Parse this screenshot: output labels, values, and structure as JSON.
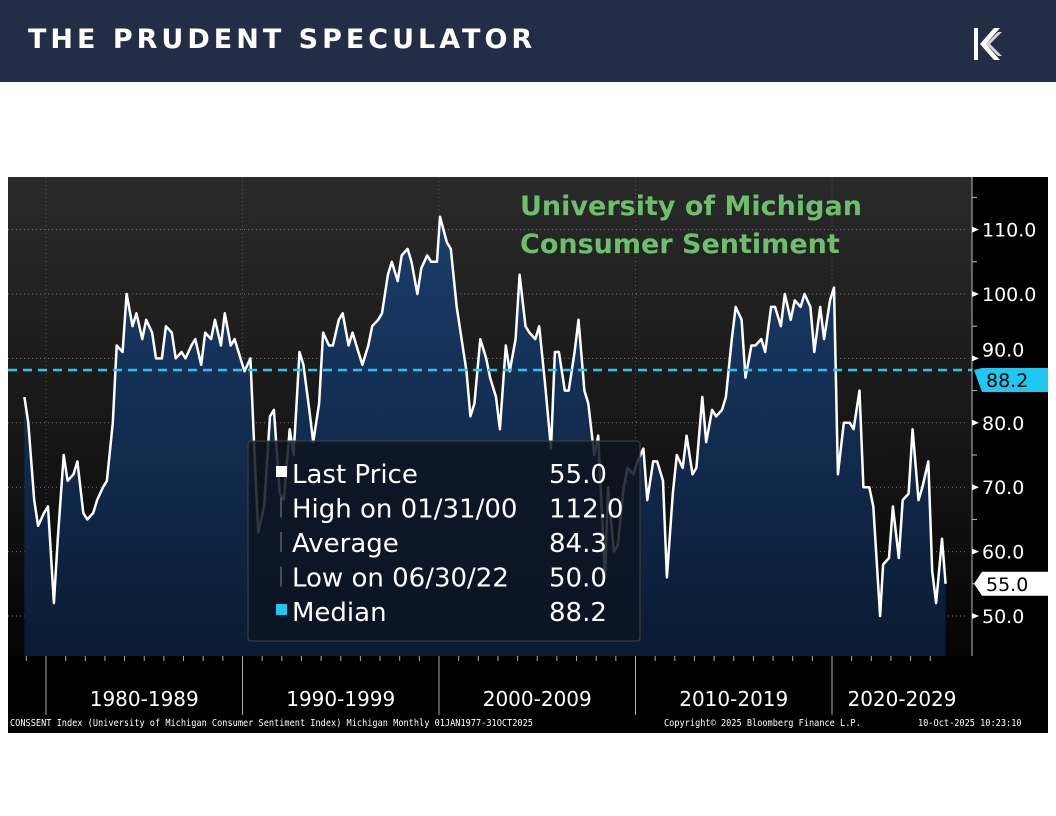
{
  "header": {
    "brand": "THE PRUDENT SPECULATOR",
    "logo_icon": "k-arrow-logo"
  },
  "chart_data": {
    "type": "area",
    "title": "University of Michigan Consumer Sentiment",
    "title_lines": [
      "University of Michigan",
      "Consumer Sentiment"
    ],
    "xlabel": "",
    "ylabel": "",
    "ylim": [
      44,
      118
    ],
    "xlim": [
      1978.9,
      2026.4
    ],
    "yticks": [
      "50.0",
      "60.0",
      "70.0",
      "80.0",
      "90.0",
      "100.0",
      "110.0"
    ],
    "ytick_values": [
      50,
      60,
      70,
      80,
      90,
      100,
      110
    ],
    "xtick_labels": [
      "1980-1989",
      "1990-1999",
      "2000-2009",
      "2010-2019",
      "2020-2029"
    ],
    "decade_starts": [
      1980,
      1990,
      2000,
      2010,
      2020,
      2030
    ],
    "grid": true,
    "median": 88.2,
    "median_label": "88.2",
    "last_label": "55.0",
    "colors": {
      "line": "#ffffff",
      "median": "#1ec8f0",
      "title": "#6dbf6d",
      "fill_top": "#1b3d6b",
      "fill_bottom": "#0a1a33"
    },
    "series": [
      {
        "name": "CONSSENT Index",
        "x": [
          1978.9,
          1979.1,
          1979.4,
          1979.6,
          1979.9,
          1980.1,
          1980.4,
          1980.6,
          1980.9,
          1981.1,
          1981.4,
          1981.6,
          1981.9,
          1982.1,
          1982.4,
          1982.6,
          1982.9,
          1983.1,
          1983.4,
          1983.6,
          1983.9,
          1984.1,
          1984.4,
          1984.6,
          1984.9,
          1985.1,
          1985.4,
          1985.6,
          1985.9,
          1986.1,
          1986.4,
          1986.6,
          1986.9,
          1987.1,
          1987.4,
          1987.6,
          1987.9,
          1988.1,
          1988.4,
          1988.6,
          1988.9,
          1989.1,
          1989.4,
          1989.6,
          1989.9,
          1990.1,
          1990.4,
          1990.6,
          1990.8,
          1991.1,
          1991.4,
          1991.6,
          1991.9,
          1992.1,
          1992.4,
          1992.6,
          1992.9,
          1993.1,
          1993.4,
          1993.6,
          1993.9,
          1994.1,
          1994.4,
          1994.6,
          1994.9,
          1995.1,
          1995.4,
          1995.6,
          1995.9,
          1996.1,
          1996.4,
          1996.6,
          1996.9,
          1997.1,
          1997.4,
          1997.6,
          1997.9,
          1998.1,
          1998.4,
          1998.6,
          1998.9,
          1999.1,
          1999.4,
          1999.6,
          1999.9,
          2000.05,
          2000.4,
          2000.6,
          2000.9,
          2001.1,
          2001.4,
          2001.6,
          2001.8,
          2002.1,
          2002.4,
          2002.6,
          2002.9,
          2003.1,
          2003.4,
          2003.6,
          2003.9,
          2004.1,
          2004.4,
          2004.6,
          2004.9,
          2005.1,
          2005.4,
          2005.7,
          2005.9,
          2006.1,
          2006.4,
          2006.6,
          2006.9,
          2007.1,
          2007.4,
          2007.6,
          2007.9,
          2008.1,
          2008.45,
          2008.6,
          2008.9,
          2009.1,
          2009.4,
          2009.6,
          2009.9,
          2010.1,
          2010.4,
          2010.6,
          2010.9,
          2011.1,
          2011.4,
          2011.6,
          2011.9,
          2012.1,
          2012.4,
          2012.6,
          2012.9,
          2013.1,
          2013.4,
          2013.6,
          2013.9,
          2014.1,
          2014.4,
          2014.6,
          2014.9,
          2015.1,
          2015.4,
          2015.6,
          2015.9,
          2016.1,
          2016.4,
          2016.6,
          2016.9,
          2017.1,
          2017.4,
          2017.6,
          2017.9,
          2018.1,
          2018.4,
          2018.6,
          2018.9,
          2019.1,
          2019.4,
          2019.6,
          2019.9,
          2020.1,
          2020.3,
          2020.6,
          2020.9,
          2021.1,
          2021.4,
          2021.6,
          2021.9,
          2022.1,
          2022.45,
          2022.6,
          2022.9,
          2023.1,
          2023.4,
          2023.6,
          2023.9,
          2024.1,
          2024.4,
          2024.6,
          2024.9,
          2025.1,
          2025.3,
          2025.6,
          2025.78
        ],
        "y": [
          84,
          80,
          68,
          64,
          66,
          67,
          52,
          62,
          75,
          71,
          72,
          74,
          66,
          65,
          66,
          68,
          70,
          71,
          80,
          92,
          91,
          100,
          95,
          97,
          93,
          96,
          94,
          90,
          90,
          95,
          94,
          90,
          91,
          90,
          92,
          93,
          89,
          94,
          93,
          96,
          92,
          97,
          92,
          93,
          90,
          88,
          90,
          76,
          63,
          67,
          81,
          82,
          69,
          68,
          79,
          75,
          91,
          89,
          82,
          77,
          83,
          94,
          92,
          92,
          96,
          97,
          92,
          94,
          91,
          89,
          92,
          95,
          96,
          97,
          103,
          105,
          102,
          106,
          107,
          105,
          100,
          104,
          106,
          105,
          105,
          112,
          108,
          107,
          98,
          94,
          88,
          81,
          83,
          93,
          90,
          87,
          84,
          79,
          92,
          88,
          93,
          103,
          95,
          94,
          93,
          95,
          86,
          76,
          91,
          91,
          85,
          85,
          91,
          96,
          85,
          83,
          75,
          78,
          56,
          70,
          60,
          61,
          70,
          73,
          72,
          74,
          76,
          68,
          74,
          74,
          71,
          56,
          69,
          75,
          73,
          78,
          72,
          73,
          84,
          77,
          82,
          81,
          82,
          84,
          93,
          98,
          96,
          87,
          92,
          92,
          93,
          91,
          98,
          98,
          95,
          100,
          96,
          99,
          98,
          100,
          98,
          91,
          98,
          93,
          99,
          101,
          72,
          80,
          80,
          79,
          85,
          70,
          70,
          67,
          50,
          58,
          59,
          67,
          59,
          68,
          69,
          79,
          68,
          70,
          74,
          57,
          52,
          62,
          55
        ]
      }
    ]
  },
  "legend": {
    "items": [
      {
        "label": "Last Price",
        "value": "55.0"
      },
      {
        "label": "High on 01/31/00",
        "value": "112.0"
      },
      {
        "label": "Average",
        "value": "84.3"
      },
      {
        "label": "Low on 06/30/22",
        "value": "50.0"
      },
      {
        "label": "Median",
        "value": "88.2"
      }
    ]
  },
  "footer": {
    "source": "CONSSENT Index (University of Michigan Consumer Sentiment Index) Michigan Monthly 01JAN1977-31OCT2025",
    "copyright": "Copyright© 2025 Bloomberg Finance L.P.",
    "timestamp": "10-Oct-2025 10:23:10"
  }
}
